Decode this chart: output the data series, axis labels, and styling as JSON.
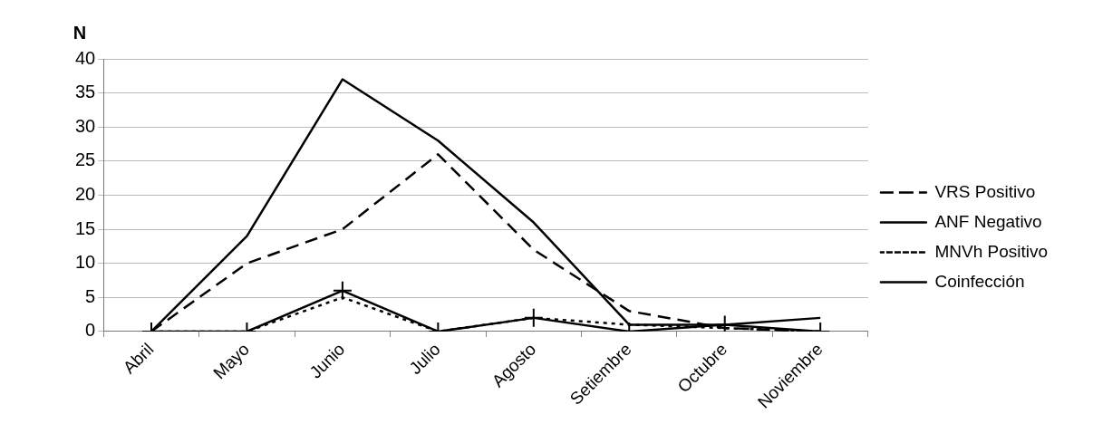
{
  "chart_data": {
    "type": "line",
    "ylabel": "N",
    "categories": [
      "Abril",
      "Mayo",
      "Junio",
      "Julio",
      "Agosto",
      "Setiembre",
      "Octubre",
      "Noviembre"
    ],
    "series": [
      {
        "name": "VRS Positivo",
        "color": "#000000",
        "line_style": "dashed",
        "marker": "none",
        "values": [
          0,
          10,
          15,
          26,
          12,
          3,
          0.5,
          0
        ]
      },
      {
        "name": "ANF Negativo",
        "color": "#000000",
        "line_style": "solid",
        "marker": "none",
        "values": [
          0,
          14,
          37,
          28,
          16,
          1,
          1,
          2
        ]
      },
      {
        "name": "MNVh Positivo",
        "color": "#000000",
        "line_style": "dotted",
        "marker": "none",
        "values": [
          0,
          0,
          5,
          0,
          2,
          1,
          0.5,
          0
        ]
      },
      {
        "name": "Coinfección",
        "color": "#000000",
        "line_style": "solid",
        "marker": "cross",
        "values": [
          0,
          0,
          6,
          0,
          2,
          0,
          1,
          0
        ]
      }
    ],
    "ylim": [
      0,
      40
    ],
    "yticks": [
      0,
      5,
      10,
      15,
      20,
      25,
      30,
      35,
      40
    ],
    "grid": "y",
    "legend": "right"
  }
}
